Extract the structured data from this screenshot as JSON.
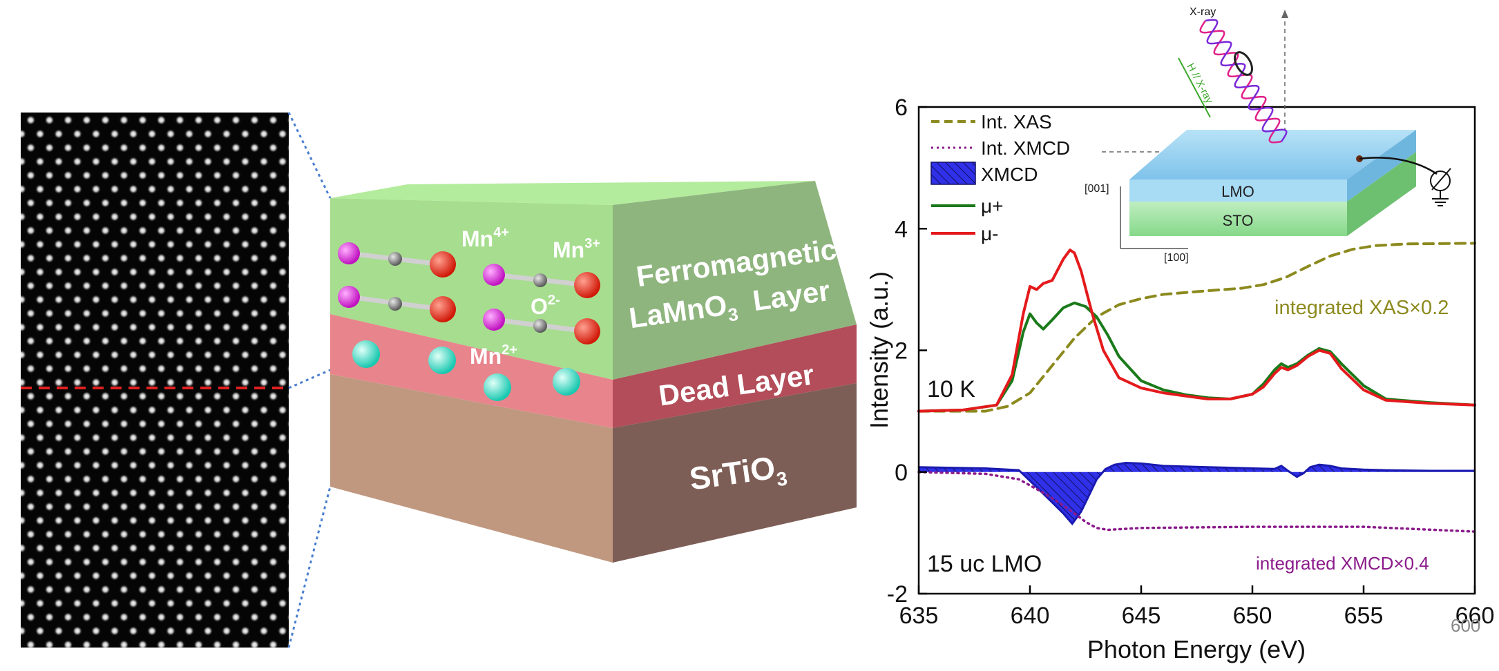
{
  "panel_a": {
    "image": "STEM lattice image of atomic columns",
    "interface_line_color": "#e02020"
  },
  "panel_b": {
    "layers": [
      {
        "name_parts": [
          "Ferromagnetic",
          "LaMnO",
          "3",
          "Layer"
        ],
        "color": "#8fb57e"
      },
      {
        "name": "Dead Layer",
        "color": "#b24d59"
      },
      {
        "name_parts": [
          "SrTiO",
          "3"
        ],
        "color": "#7d5e56"
      }
    ],
    "ion_labels": {
      "mn4": {
        "base": "Mn",
        "sup": "4+"
      },
      "mn3": {
        "base": "Mn",
        "sup": "3+"
      },
      "o2": {
        "base": "O",
        "sup": "2-"
      },
      "mn2": {
        "base": "Mn",
        "sup": "2+"
      }
    },
    "ion_colors": {
      "mn4": "#e020d8",
      "mn3": "#e82010",
      "o": "#8a8a8a",
      "mn2": "#30e0c8"
    }
  },
  "chart_data": {
    "type": "line",
    "xlabel": "Photon Energy (eV)",
    "ylabel": "Intensity (a.u.)",
    "xlim": [
      635,
      660
    ],
    "ylim": [
      -2,
      6
    ],
    "xticks": [
      635,
      640,
      645,
      650,
      655,
      660
    ],
    "yticks": [
      -2,
      0,
      2,
      4,
      6
    ],
    "grid": false,
    "legend_position": "top-left",
    "legend": [
      "Int. XAS",
      "Int. XMCD",
      "XMCD",
      "μ+",
      "μ-"
    ],
    "annotations": [
      "10 K",
      "15 uc LMO",
      "integrated XAS×0.2",
      "integrated XMCD×0.4"
    ],
    "series": [
      {
        "name": "μ-",
        "color": "#e41a1c",
        "style": "solid",
        "x": [
          635,
          637,
          638.5,
          639.2,
          639.7,
          640.0,
          640.3,
          640.6,
          641.0,
          641.5,
          641.8,
          642.0,
          642.3,
          642.8,
          643.3,
          644,
          645,
          646,
          647,
          648,
          649,
          650,
          650.5,
          651,
          651.3,
          651.6,
          652,
          652.5,
          653,
          653.5,
          654,
          655,
          656,
          658,
          660
        ],
        "y": [
          1.0,
          1.02,
          1.1,
          1.6,
          2.6,
          3.05,
          3.0,
          3.1,
          3.15,
          3.5,
          3.65,
          3.6,
          3.3,
          2.6,
          2.0,
          1.55,
          1.38,
          1.3,
          1.25,
          1.2,
          1.2,
          1.28,
          1.4,
          1.62,
          1.72,
          1.68,
          1.75,
          1.9,
          2.0,
          1.95,
          1.7,
          1.35,
          1.18,
          1.13,
          1.1
        ]
      },
      {
        "name": "μ+",
        "color": "#1a7a1a",
        "style": "solid",
        "x": [
          635,
          637,
          638.5,
          639.2,
          639.7,
          640.0,
          640.3,
          640.6,
          641.0,
          641.5,
          642.0,
          642.5,
          643,
          643.5,
          644,
          645,
          646,
          647,
          648,
          649,
          650,
          650.5,
          651,
          651.3,
          651.6,
          652,
          652.5,
          653,
          653.5,
          654,
          655,
          656,
          658,
          660
        ],
        "y": [
          1.0,
          1.02,
          1.1,
          1.5,
          2.3,
          2.6,
          2.45,
          2.35,
          2.5,
          2.7,
          2.78,
          2.72,
          2.55,
          2.25,
          1.9,
          1.5,
          1.35,
          1.27,
          1.22,
          1.2,
          1.28,
          1.45,
          1.68,
          1.78,
          1.72,
          1.78,
          1.92,
          2.03,
          1.98,
          1.78,
          1.42,
          1.2,
          1.14,
          1.1
        ]
      },
      {
        "name": "Int. XAS",
        "color": "#8c8a1e",
        "style": "dashed",
        "x": [
          635,
          638,
          639,
          640,
          641,
          642,
          643,
          644,
          645,
          646,
          648,
          649.5,
          650.5,
          651.5,
          652.5,
          653.5,
          654.5,
          655.5,
          657,
          660
        ],
        "y": [
          1.0,
          1.0,
          1.08,
          1.3,
          1.75,
          2.2,
          2.55,
          2.75,
          2.85,
          2.92,
          2.98,
          3.02,
          3.08,
          3.2,
          3.38,
          3.55,
          3.66,
          3.72,
          3.75,
          3.76
        ]
      },
      {
        "name": "Int. XMCD",
        "color": "#8b1a8b",
        "style": "dotted",
        "x": [
          635,
          638,
          639.5,
          640.5,
          641.3,
          642,
          642.5,
          643,
          643.5,
          645,
          650,
          655,
          660
        ],
        "y": [
          0.0,
          -0.03,
          -0.12,
          -0.32,
          -0.5,
          -0.68,
          -0.82,
          -0.92,
          -0.95,
          -0.92,
          -0.9,
          -0.9,
          -0.98
        ]
      },
      {
        "name": "XMCD",
        "color": "#2a2ae0",
        "style": "filled-hatched",
        "x": [
          635,
          638,
          639.5,
          640.3,
          641,
          641.5,
          641.9,
          642.3,
          642.7,
          643,
          643.4,
          643.8,
          644.3,
          645,
          646,
          648,
          650,
          651,
          651.3,
          651.6,
          652,
          652.3,
          652.6,
          653,
          653.5,
          654,
          655,
          656,
          658,
          660
        ],
        "y": [
          0.08,
          0.06,
          0.03,
          -0.25,
          -0.5,
          -0.68,
          -0.85,
          -0.65,
          -0.35,
          -0.12,
          0.05,
          0.12,
          0.15,
          0.14,
          0.1,
          0.08,
          0.06,
          0.05,
          0.1,
          0.02,
          -0.08,
          -0.02,
          0.08,
          0.12,
          0.1,
          0.06,
          0.04,
          0.03,
          0.02,
          0.02
        ]
      }
    ]
  },
  "inset": {
    "xray_label": "X-ray",
    "h_label": "H // X-ray",
    "layer_top": "LMO",
    "layer_bottom": "STO",
    "axis_v": "[001]",
    "axis_h": "[100]"
  },
  "stray_label": "600"
}
